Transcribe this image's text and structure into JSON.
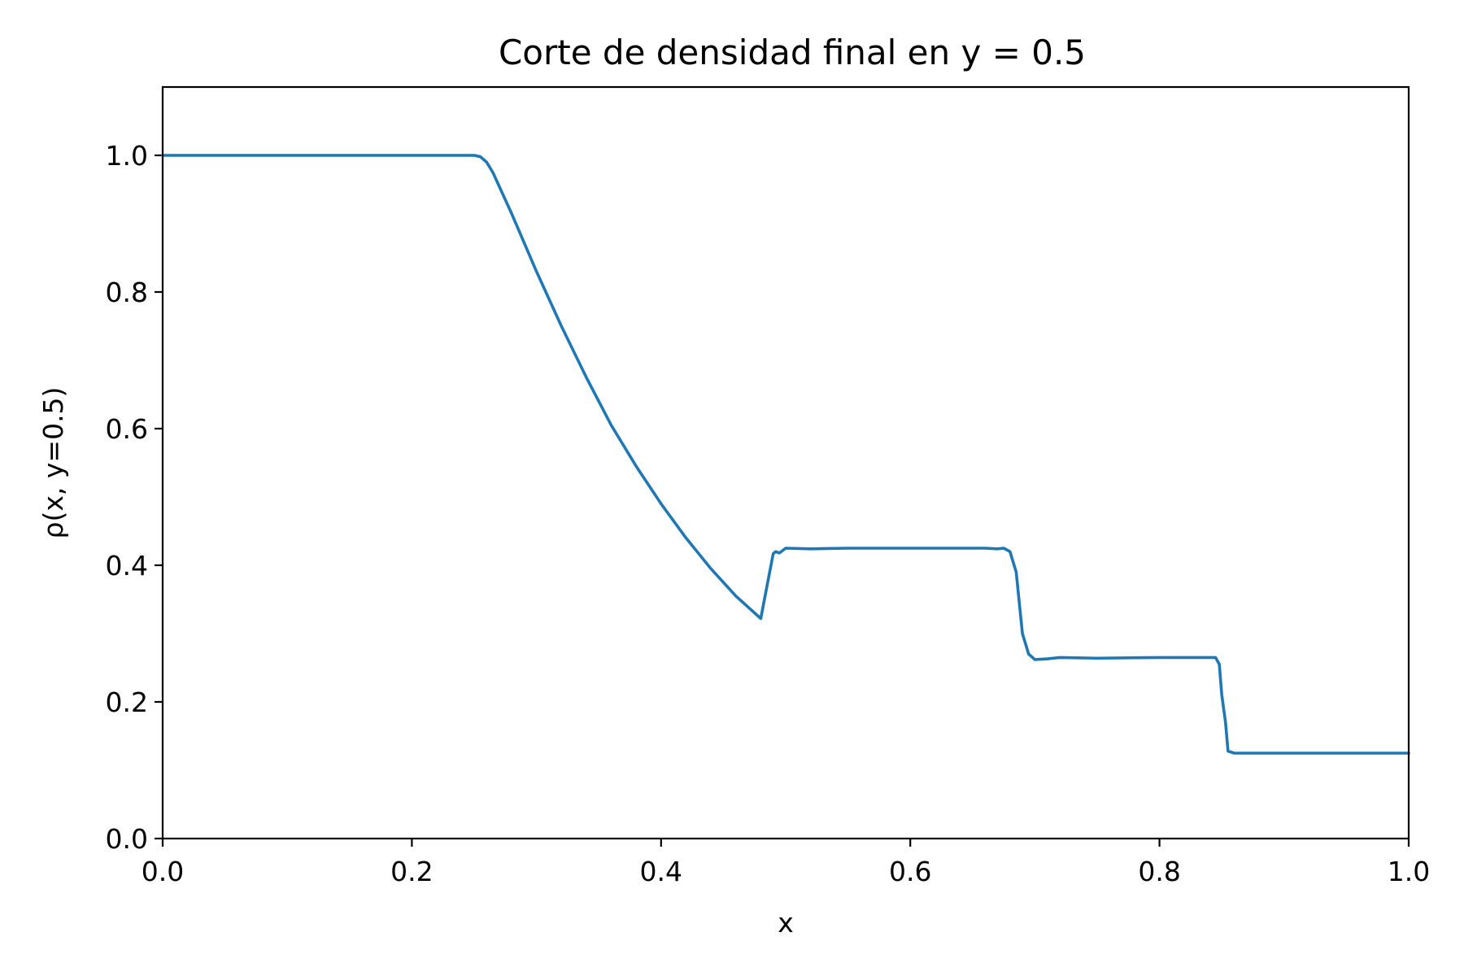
{
  "chart_data": {
    "type": "line",
    "title": "Corte de densidad final en y = 0.5",
    "xlabel": "x",
    "ylabel": "ρ(x, y=0.5)",
    "xlim": [
      0.0,
      1.0
    ],
    "ylim": [
      0.0,
      1.1
    ],
    "xticks": [
      0.0,
      0.2,
      0.4,
      0.6,
      0.8,
      1.0
    ],
    "xtick_labels": [
      "0.0",
      "0.2",
      "0.4",
      "0.6",
      "0.8",
      "1.0"
    ],
    "yticks": [
      0.0,
      0.2,
      0.4,
      0.6,
      0.8,
      1.0
    ],
    "ytick_labels": [
      "0.0",
      "0.2",
      "0.4",
      "0.6",
      "0.8",
      "1.0"
    ],
    "grid": false,
    "series": [
      {
        "color": "#1f77b4",
        "x": [
          0.0,
          0.1,
          0.2,
          0.25,
          0.255,
          0.26,
          0.265,
          0.27,
          0.28,
          0.3,
          0.32,
          0.34,
          0.36,
          0.38,
          0.4,
          0.42,
          0.44,
          0.46,
          0.48,
          0.49,
          0.492,
          0.495,
          0.5,
          0.52,
          0.55,
          0.6,
          0.65,
          0.66,
          0.67,
          0.675,
          0.68,
          0.685,
          0.69,
          0.695,
          0.7,
          0.71,
          0.72,
          0.75,
          0.8,
          0.845,
          0.848,
          0.85,
          0.853,
          0.855,
          0.86,
          0.9,
          1.0
        ],
        "y": [
          1.0,
          1.0,
          1.0,
          1.0,
          0.998,
          0.99,
          0.975,
          0.955,
          0.915,
          0.83,
          0.75,
          0.675,
          0.605,
          0.545,
          0.49,
          0.44,
          0.395,
          0.355,
          0.322,
          0.417,
          0.42,
          0.418,
          0.425,
          0.424,
          0.425,
          0.425,
          0.425,
          0.425,
          0.424,
          0.425,
          0.42,
          0.39,
          0.3,
          0.27,
          0.262,
          0.263,
          0.265,
          0.264,
          0.265,
          0.265,
          0.255,
          0.21,
          0.17,
          0.128,
          0.125,
          0.125,
          0.125
        ]
      }
    ]
  }
}
